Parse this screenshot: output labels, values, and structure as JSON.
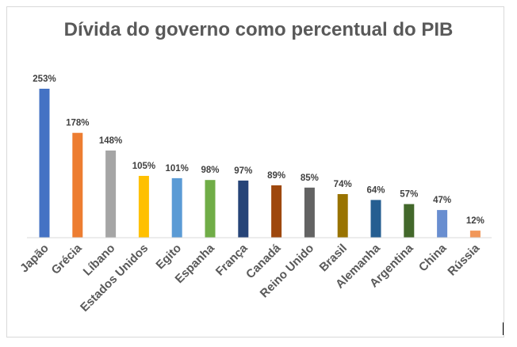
{
  "chart_data": {
    "type": "bar",
    "title": "Dívida do governo como percentual do PIB",
    "xlabel": "",
    "ylabel": "",
    "ylim": [
      0,
      253
    ],
    "grid": false,
    "legend": "none",
    "categories": [
      "Japão",
      "Grécia",
      "Líbano",
      "Estados Unidos",
      "Egito",
      "Espanha",
      "França",
      "Canadá",
      "Reino Unido",
      "Brasil",
      "Alemanha",
      "Argentina",
      "China",
      "Rússia"
    ],
    "values": [
      253,
      178,
      148,
      105,
      101,
      98,
      97,
      89,
      85,
      74,
      64,
      57,
      47,
      12
    ],
    "data_labels": [
      "253%",
      "178%",
      "148%",
      "105%",
      "101%",
      "98%",
      "97%",
      "89%",
      "85%",
      "74%",
      "64%",
      "57%",
      "47%",
      "12%"
    ],
    "colors": [
      "#4472c4",
      "#ed7d31",
      "#a5a5a5",
      "#ffc000",
      "#5b9bd5",
      "#70ad47",
      "#264478",
      "#9e480e",
      "#636363",
      "#997300",
      "#255e91",
      "#43682b",
      "#698ed0",
      "#f1975a"
    ]
  }
}
